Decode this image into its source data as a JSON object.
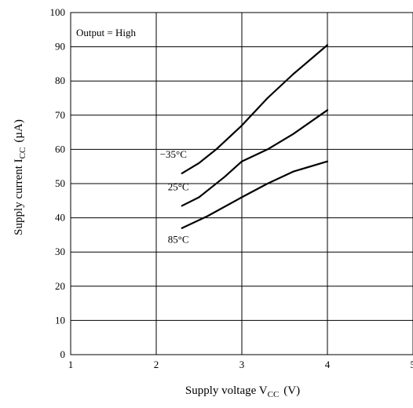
{
  "chart_data": {
    "type": "line",
    "annotation": "Output = High",
    "xlabel_main": "Supply voltage  V",
    "xlabel_sub": "CC",
    "xlabel_unit": "(V)",
    "ylabel_main": "Supply current  I",
    "ylabel_sub": "CC",
    "ylabel_unit": "(µA)",
    "xlim": [
      1,
      5
    ],
    "ylim": [
      0,
      100
    ],
    "x_ticks": [
      1,
      2,
      3,
      4,
      5
    ],
    "y_ticks": [
      0,
      10,
      20,
      30,
      40,
      50,
      60,
      70,
      80,
      90,
      100
    ],
    "grid": true,
    "series": [
      {
        "name": "−35°C",
        "x": [
          2.3,
          2.5,
          2.7,
          3.0,
          3.3,
          3.6,
          4.0
        ],
        "y": [
          53,
          56,
          60,
          67,
          75,
          82,
          90.5
        ]
      },
      {
        "name": "25°C",
        "x": [
          2.3,
          2.5,
          2.8,
          3.0,
          3.3,
          3.6,
          4.0
        ],
        "y": [
          43.5,
          46,
          52,
          56.5,
          60,
          64.5,
          71.5
        ]
      },
      {
        "name": "85°C",
        "x": [
          2.3,
          2.6,
          3.0,
          3.3,
          3.6,
          4.0
        ],
        "y": [
          37,
          40.5,
          46,
          50,
          53.5,
          56.5
        ]
      }
    ]
  }
}
